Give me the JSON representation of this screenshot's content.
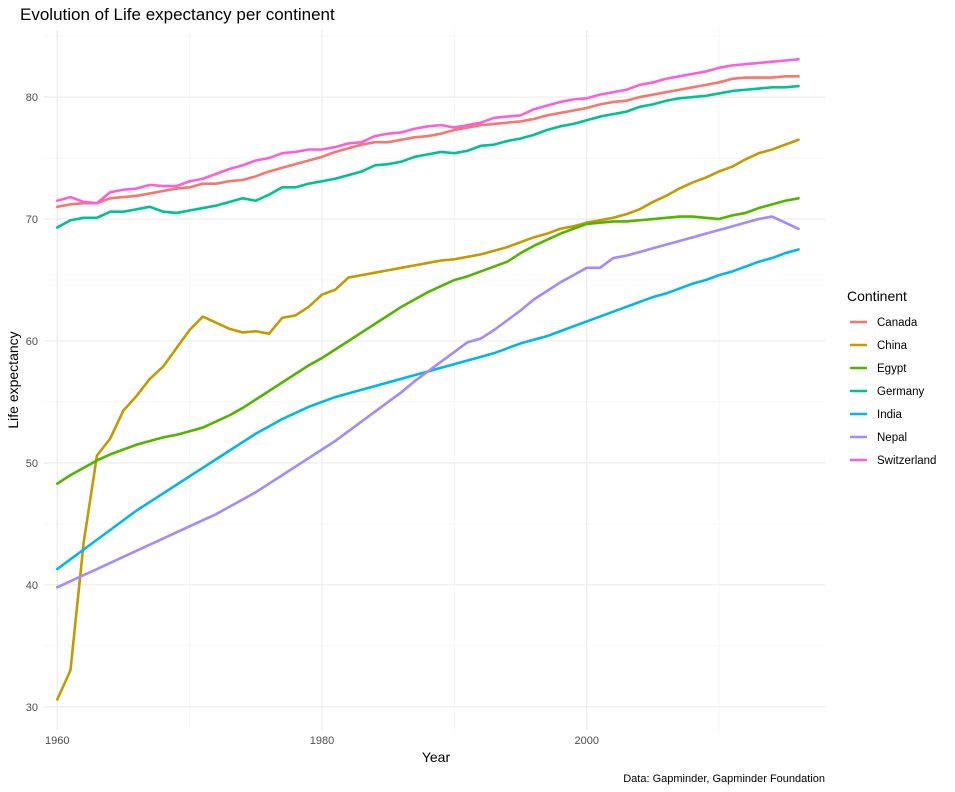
{
  "chart_data": {
    "type": "line",
    "title": "Evolution of Life expectancy per continent",
    "xlabel": "Year",
    "ylabel": "Life expectancy",
    "caption": "Data: Gapminder, Gapminder Foundation",
    "legend_title": "Continent",
    "legend_position": "right",
    "grid": true,
    "xlim": [
      1959,
      2018
    ],
    "ylim": [
      28.1,
      85.5
    ],
    "x_ticks": [
      1960,
      1980,
      2000
    ],
    "y_ticks": [
      30,
      40,
      50,
      60,
      70,
      80
    ],
    "x": [
      1960,
      1961,
      1962,
      1963,
      1964,
      1965,
      1966,
      1967,
      1968,
      1969,
      1970,
      1971,
      1972,
      1973,
      1974,
      1975,
      1976,
      1977,
      1978,
      1979,
      1980,
      1981,
      1982,
      1983,
      1984,
      1985,
      1986,
      1987,
      1988,
      1989,
      1990,
      1991,
      1992,
      1993,
      1994,
      1995,
      1996,
      1997,
      1998,
      1999,
      2000,
      2001,
      2002,
      2003,
      2004,
      2005,
      2006,
      2007,
      2008,
      2009,
      2010,
      2011,
      2012,
      2013,
      2014,
      2015,
      2016
    ],
    "series": [
      {
        "name": "Canada",
        "color": "#F8766D",
        "values": [
          71.0,
          71.2,
          71.3,
          71.3,
          71.7,
          71.8,
          71.9,
          72.1,
          72.3,
          72.5,
          72.6,
          72.9,
          72.9,
          73.1,
          73.2,
          73.5,
          73.9,
          74.2,
          74.5,
          74.8,
          75.1,
          75.5,
          75.8,
          76.1,
          76.3,
          76.3,
          76.5,
          76.7,
          76.8,
          77.0,
          77.3,
          77.5,
          77.7,
          77.8,
          77.9,
          78.0,
          78.2,
          78.5,
          78.7,
          78.9,
          79.1,
          79.4,
          79.6,
          79.7,
          80.0,
          80.2,
          80.4,
          80.6,
          80.8,
          81.0,
          81.2,
          81.5,
          81.6,
          81.6,
          81.6,
          81.7,
          81.7
        ]
      },
      {
        "name": "China",
        "color": "#C49A00",
        "values": [
          30.6,
          33.0,
          43.5,
          50.6,
          52.0,
          54.3,
          55.5,
          56.9,
          57.9,
          59.4,
          60.9,
          62.0,
          61.5,
          61.0,
          60.7,
          60.8,
          60.6,
          61.9,
          62.1,
          62.8,
          63.8,
          64.2,
          65.2,
          65.4,
          65.6,
          65.8,
          66.0,
          66.2,
          66.4,
          66.6,
          66.7,
          66.9,
          67.1,
          67.4,
          67.7,
          68.1,
          68.5,
          68.8,
          69.2,
          69.4,
          69.7,
          69.9,
          70.1,
          70.4,
          70.8,
          71.4,
          71.9,
          72.5,
          73.0,
          73.4,
          73.9,
          74.3,
          74.9,
          75.4,
          75.7,
          76.1,
          76.5
        ]
      },
      {
        "name": "Egypt",
        "color": "#53B400",
        "values": [
          48.3,
          49.0,
          49.6,
          50.2,
          50.7,
          51.1,
          51.5,
          51.8,
          52.1,
          52.3,
          52.6,
          52.9,
          53.4,
          53.9,
          54.5,
          55.2,
          55.9,
          56.6,
          57.3,
          58.0,
          58.6,
          59.3,
          60.0,
          60.7,
          61.4,
          62.1,
          62.8,
          63.4,
          64.0,
          64.5,
          65.0,
          65.3,
          65.7,
          66.1,
          66.5,
          67.2,
          67.8,
          68.3,
          68.8,
          69.2,
          69.6,
          69.7,
          69.8,
          69.8,
          69.9,
          70.0,
          70.1,
          70.2,
          70.2,
          70.1,
          70.0,
          70.3,
          70.5,
          70.9,
          71.2,
          71.5,
          71.7
        ]
      },
      {
        "name": "Germany",
        "color": "#00C094",
        "values": [
          69.3,
          69.9,
          70.1,
          70.1,
          70.6,
          70.6,
          70.8,
          71.0,
          70.6,
          70.5,
          70.7,
          70.9,
          71.1,
          71.4,
          71.7,
          71.5,
          72.0,
          72.6,
          72.6,
          72.9,
          73.1,
          73.3,
          73.6,
          73.9,
          74.4,
          74.5,
          74.7,
          75.1,
          75.3,
          75.5,
          75.4,
          75.6,
          76.0,
          76.1,
          76.4,
          76.6,
          76.9,
          77.3,
          77.6,
          77.8,
          78.1,
          78.4,
          78.6,
          78.8,
          79.2,
          79.4,
          79.7,
          79.9,
          80.0,
          80.1,
          80.3,
          80.5,
          80.6,
          80.7,
          80.8,
          80.8,
          80.9
        ]
      },
      {
        "name": "India",
        "color": "#00B6EB",
        "values": [
          41.3,
          42.1,
          42.9,
          43.7,
          44.5,
          45.3,
          46.1,
          46.8,
          47.5,
          48.2,
          48.9,
          49.6,
          50.3,
          51.0,
          51.7,
          52.4,
          53.0,
          53.6,
          54.1,
          54.6,
          55.0,
          55.4,
          55.7,
          56.0,
          56.3,
          56.6,
          56.9,
          57.2,
          57.5,
          57.8,
          58.1,
          58.4,
          58.7,
          59.0,
          59.4,
          59.8,
          60.1,
          60.4,
          60.8,
          61.2,
          61.6,
          62.0,
          62.4,
          62.8,
          63.2,
          63.6,
          63.9,
          64.3,
          64.7,
          65.0,
          65.4,
          65.7,
          66.1,
          66.5,
          66.8,
          67.2,
          67.5
        ]
      },
      {
        "name": "Nepal",
        "color": "#A58AFF",
        "values": [
          39.8,
          40.3,
          40.8,
          41.3,
          41.8,
          42.3,
          42.8,
          43.3,
          43.8,
          44.3,
          44.8,
          45.3,
          45.8,
          46.4,
          47.0,
          47.6,
          48.3,
          49.0,
          49.7,
          50.4,
          51.1,
          51.8,
          52.6,
          53.4,
          54.2,
          55.0,
          55.8,
          56.7,
          57.5,
          58.3,
          59.1,
          59.9,
          60.2,
          60.9,
          61.7,
          62.5,
          63.4,
          64.1,
          64.8,
          65.4,
          66.0,
          66.0,
          66.8,
          67.0,
          67.3,
          67.6,
          67.9,
          68.2,
          68.5,
          68.8,
          69.1,
          69.4,
          69.7,
          70.0,
          70.2,
          69.7,
          69.2
        ]
      },
      {
        "name": "Switzerland",
        "color": "#FB61D7",
        "values": [
          71.5,
          71.8,
          71.4,
          71.3,
          72.2,
          72.4,
          72.5,
          72.8,
          72.7,
          72.7,
          73.1,
          73.3,
          73.7,
          74.1,
          74.4,
          74.8,
          75.0,
          75.4,
          75.5,
          75.7,
          75.7,
          75.9,
          76.2,
          76.3,
          76.8,
          77.0,
          77.1,
          77.4,
          77.6,
          77.7,
          77.5,
          77.7,
          77.9,
          78.3,
          78.4,
          78.5,
          79.0,
          79.3,
          79.6,
          79.8,
          79.9,
          80.2,
          80.4,
          80.6,
          81.0,
          81.2,
          81.5,
          81.7,
          81.9,
          82.1,
          82.4,
          82.6,
          82.7,
          82.8,
          82.9,
          83.0,
          83.1
        ]
      }
    ]
  }
}
